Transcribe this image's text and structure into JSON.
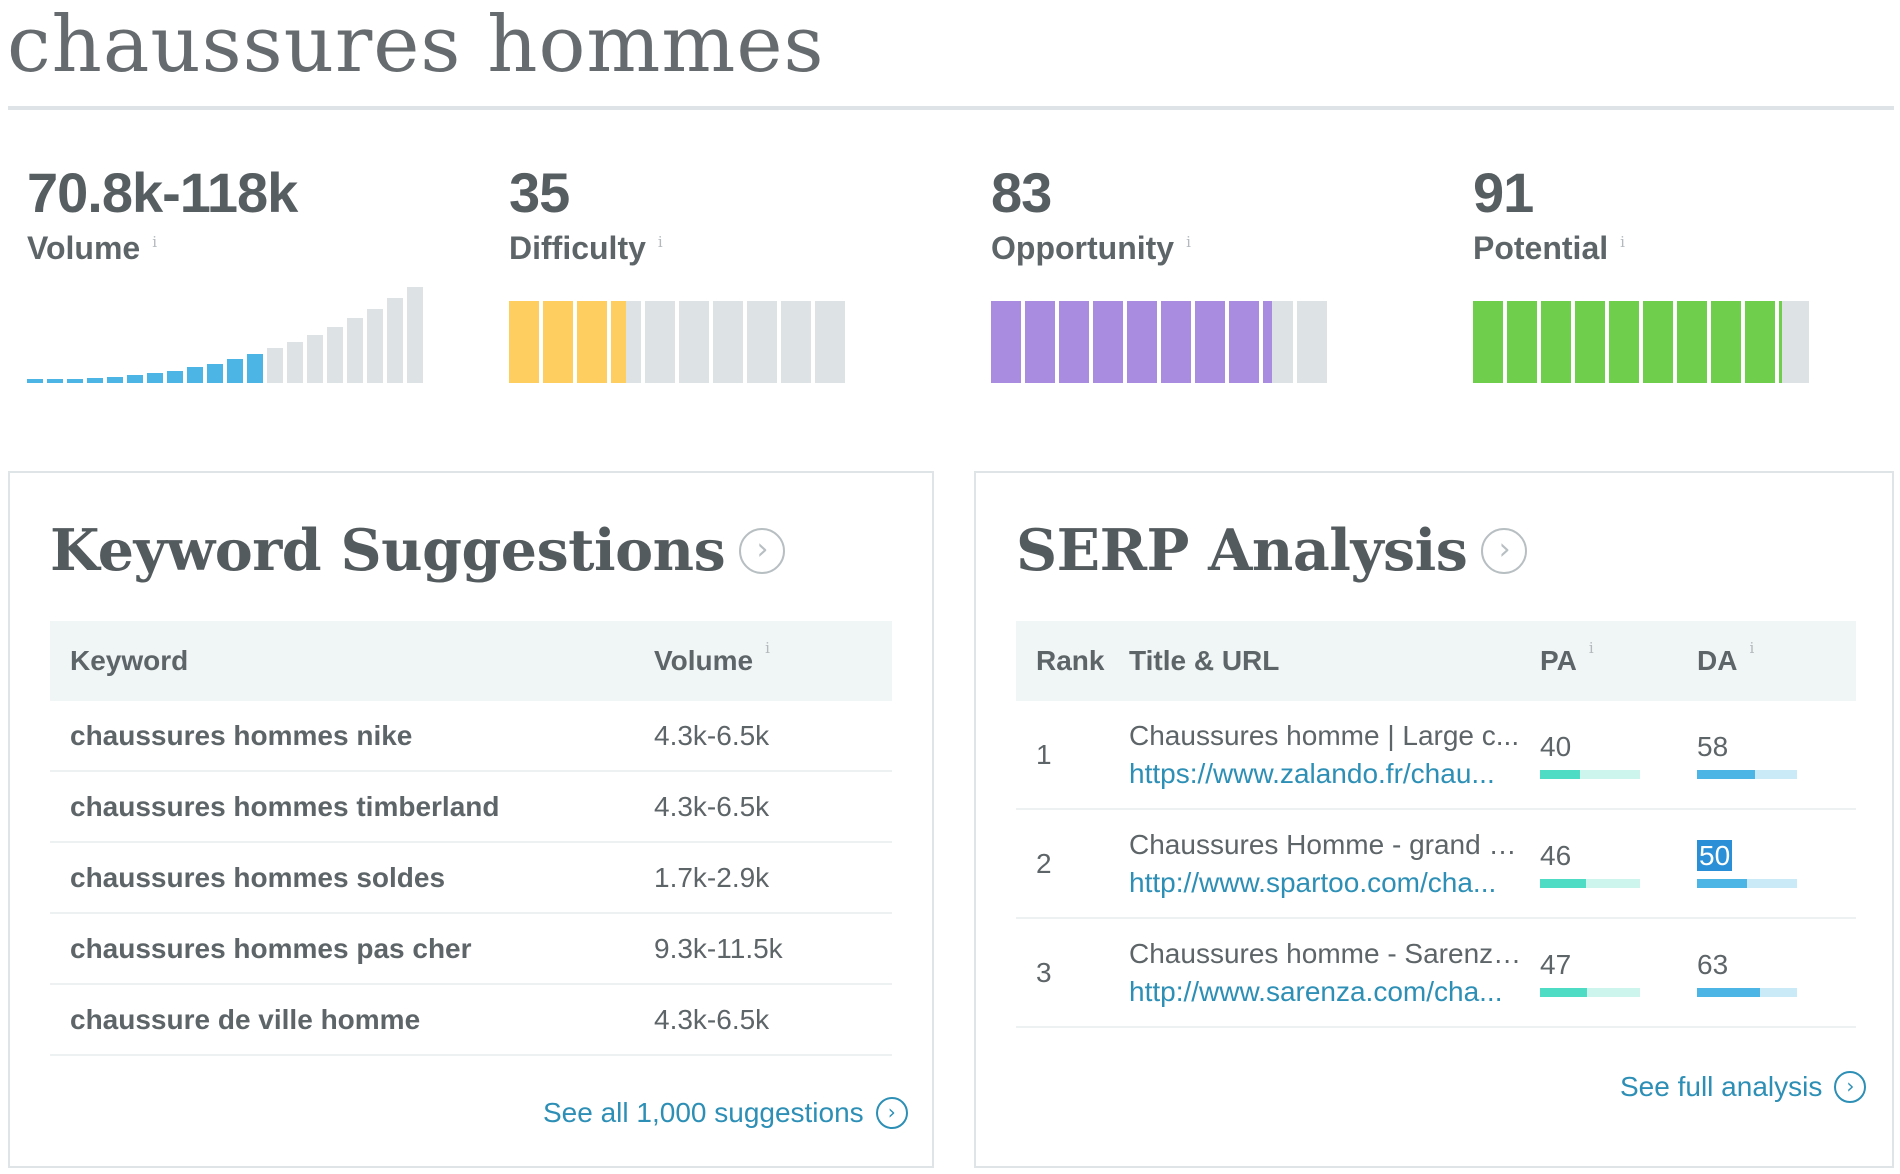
{
  "page": {
    "title": "chaussures hommes"
  },
  "metrics": [
    {
      "id": "volume",
      "value": "70.8k-118k",
      "label": "Volume",
      "info": "i",
      "chart": "volume-trend",
      "bars_total": 20,
      "bars_filled": 12
    },
    {
      "id": "difficulty",
      "value": "35",
      "label": "Difficulty",
      "info": "i",
      "score": 35,
      "color": "#fecf60"
    },
    {
      "id": "opportunity",
      "value": "83",
      "label": "Opportunity",
      "info": "i",
      "score": 83,
      "color": "#a98be0"
    },
    {
      "id": "potential",
      "value": "91",
      "label": "Potential",
      "info": "i",
      "score": 91,
      "color": "#6fcf4c"
    }
  ],
  "colors": {
    "volume_fill": "#4db4e6",
    "bar_empty": "#dde3e5",
    "pa_fill": "#4fdcc5",
    "pa_track": "#cdf5ee",
    "da_fill": "#4db4e6",
    "da_track": "#cbeaf8",
    "link": "#2d8fb5"
  },
  "keyword_suggestions": {
    "title": "Keyword Suggestions",
    "arrow_icon": "chevron-right-circle-icon",
    "columns": {
      "keyword": "Keyword",
      "volume": "Volume",
      "volume_info": "i"
    },
    "rows": [
      {
        "keyword": "chaussures hommes nike",
        "volume": "4.3k-6.5k"
      },
      {
        "keyword": "chaussures hommes timberland",
        "volume": "4.3k-6.5k"
      },
      {
        "keyword": "chaussures hommes soldes",
        "volume": "1.7k-2.9k"
      },
      {
        "keyword": "chaussures hommes pas cher",
        "volume": "9.3k-11.5k"
      },
      {
        "keyword": "chaussure de ville homme",
        "volume": "4.3k-6.5k"
      }
    ],
    "see_all": "See all 1,000 suggestions"
  },
  "serp_analysis": {
    "title": "SERP Analysis",
    "arrow_icon": "chevron-right-circle-icon",
    "columns": {
      "rank": "Rank",
      "title_url": "Title & URL",
      "pa": "PA",
      "pa_info": "i",
      "da": "DA",
      "da_info": "i"
    },
    "rows": [
      {
        "rank": "1",
        "title": "Chaussures homme | Large c...",
        "url": "https://www.zalando.fr/chau...",
        "pa": "40",
        "da": "58",
        "pa_value": 40,
        "da_value": 58
      },
      {
        "rank": "2",
        "title": "Chaussures Homme - grand c...",
        "url": "http://www.spartoo.com/cha...",
        "pa": "46",
        "da": "50",
        "pa_value": 46,
        "da_value": 50,
        "da_selected": true
      },
      {
        "rank": "3",
        "title": "Chaussures homme - Sarenza...",
        "url": "http://www.sarenza.com/cha...",
        "pa": "47",
        "da": "63",
        "pa_value": 47,
        "da_value": 63
      }
    ],
    "see_full": "See full analysis"
  }
}
